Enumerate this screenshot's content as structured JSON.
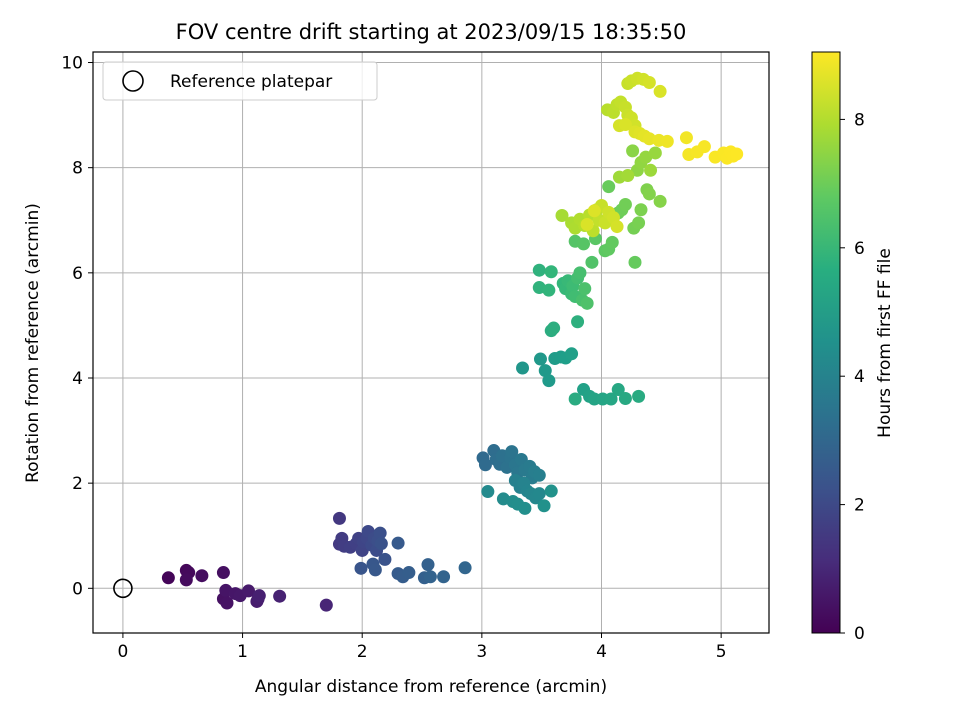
{
  "chart_data": {
    "type": "scatter",
    "title": "FOV centre drift starting at 2023/09/15 18:35:50",
    "xlabel": "Angular distance from reference (arcmin)",
    "ylabel": "Rotation from reference (arcmin)",
    "xlim": [
      -0.25,
      5.4
    ],
    "ylim": [
      -0.85,
      10.2
    ],
    "xticks": [
      0,
      1,
      2,
      3,
      4,
      5
    ],
    "yticks": [
      0,
      2,
      4,
      6,
      8,
      10
    ],
    "grid": true,
    "legend": {
      "position": "top-left",
      "entries": [
        "Reference platepar"
      ]
    },
    "reference_point": {
      "x": 0,
      "y": 0,
      "label": "Reference platepar"
    },
    "colorbar": {
      "label": "Hours from first FF file",
      "colormap": "viridis",
      "range": [
        0,
        9.05
      ],
      "ticks": [
        0,
        2,
        4,
        6,
        8
      ]
    },
    "series": [
      {
        "points": [
          [
            0.38,
            0.2,
            0.1
          ],
          [
            0.53,
            0.34,
            0.15
          ],
          [
            0.55,
            0.3,
            0.2
          ],
          [
            0.53,
            0.16,
            0.25
          ],
          [
            0.66,
            0.24,
            0.3
          ],
          [
            0.84,
            0.3,
            0.35
          ],
          [
            0.84,
            -0.2,
            0.4
          ],
          [
            0.87,
            -0.28,
            0.45
          ],
          [
            0.86,
            -0.04,
            0.5
          ],
          [
            0.94,
            -0.1,
            0.55
          ],
          [
            0.98,
            -0.14,
            0.6
          ],
          [
            1.05,
            -0.05,
            0.65
          ],
          [
            1.12,
            -0.25,
            0.7
          ],
          [
            1.13,
            -0.2,
            0.75
          ],
          [
            1.14,
            -0.14,
            0.8
          ],
          [
            1.31,
            -0.15,
            0.85
          ],
          [
            1.7,
            -0.32,
            0.95
          ],
          [
            1.81,
            1.33,
            1.5
          ],
          [
            1.81,
            0.84,
            1.55
          ],
          [
            1.83,
            0.95,
            1.6
          ],
          [
            1.85,
            0.8,
            1.65
          ],
          [
            1.9,
            0.78,
            1.7
          ],
          [
            1.95,
            0.85,
            1.75
          ],
          [
            1.97,
            0.95,
            1.8
          ],
          [
            2.0,
            0.72,
            1.85
          ],
          [
            2.01,
            0.88,
            1.9
          ],
          [
            2.04,
            0.95,
            1.95
          ],
          [
            2.05,
            1.08,
            2.0
          ],
          [
            2.08,
            0.82,
            2.05
          ],
          [
            2.1,
            0.95,
            2.1
          ],
          [
            2.12,
            0.72,
            2.15
          ],
          [
            2.13,
            0.9,
            2.2
          ],
          [
            2.15,
            1.05,
            2.25
          ],
          [
            2.16,
            0.85,
            2.3
          ],
          [
            2.19,
            0.55,
            2.35
          ],
          [
            1.99,
            0.38,
            2.4
          ],
          [
            2.09,
            0.46,
            2.45
          ],
          [
            2.11,
            0.35,
            2.5
          ],
          [
            2.3,
            0.86,
            2.55
          ],
          [
            2.3,
            0.28,
            2.6
          ],
          [
            2.34,
            0.22,
            2.65
          ],
          [
            2.39,
            0.3,
            2.7
          ],
          [
            2.52,
            0.2,
            2.75
          ],
          [
            2.55,
            0.45,
            2.8
          ],
          [
            2.57,
            0.22,
            2.85
          ],
          [
            2.68,
            0.22,
            2.9
          ],
          [
            2.86,
            0.39,
            2.95
          ],
          [
            3.01,
            2.48,
            3.1
          ],
          [
            3.03,
            2.35,
            3.15
          ],
          [
            3.1,
            2.62,
            3.2
          ],
          [
            3.12,
            2.45,
            3.25
          ],
          [
            3.15,
            2.36,
            3.3
          ],
          [
            3.17,
            2.52,
            3.35
          ],
          [
            3.21,
            2.3,
            3.4
          ],
          [
            3.24,
            2.48,
            3.45
          ],
          [
            3.25,
            2.6,
            3.5
          ],
          [
            3.28,
            2.35,
            3.55
          ],
          [
            3.3,
            2.2,
            3.6
          ],
          [
            3.33,
            2.45,
            3.65
          ],
          [
            3.36,
            2.25,
            3.7
          ],
          [
            3.4,
            2.32,
            3.75
          ],
          [
            3.42,
            2.1,
            3.8
          ],
          [
            3.44,
            2.22,
            3.85
          ],
          [
            3.48,
            2.15,
            3.9
          ],
          [
            3.28,
            2.05,
            3.95
          ],
          [
            3.32,
            1.92,
            4.0
          ],
          [
            3.35,
            2.0,
            4.05
          ],
          [
            3.38,
            1.85,
            4.1
          ],
          [
            3.41,
            1.8,
            4.15
          ],
          [
            3.45,
            1.72,
            4.2
          ],
          [
            3.48,
            1.8,
            4.25
          ],
          [
            3.05,
            1.84,
            4.3
          ],
          [
            3.18,
            1.7,
            4.35
          ],
          [
            3.26,
            1.65,
            4.4
          ],
          [
            3.3,
            1.6,
            4.45
          ],
          [
            3.36,
            1.52,
            4.5
          ],
          [
            3.52,
            1.57,
            4.55
          ],
          [
            3.58,
            1.85,
            4.6
          ],
          [
            3.34,
            4.19,
            4.75
          ],
          [
            3.49,
            4.36,
            4.8
          ],
          [
            3.53,
            4.14,
            4.85
          ],
          [
            3.56,
            3.95,
            4.9
          ],
          [
            3.61,
            4.37,
            4.95
          ],
          [
            3.66,
            4.4,
            5.0
          ],
          [
            3.7,
            4.38,
            5.05
          ],
          [
            3.75,
            4.46,
            5.1
          ],
          [
            3.85,
            3.78,
            5.15
          ],
          [
            3.9,
            3.65,
            5.2
          ],
          [
            3.94,
            3.6,
            5.25
          ],
          [
            4.01,
            3.6,
            5.3
          ],
          [
            4.08,
            3.6,
            5.35
          ],
          [
            4.14,
            3.78,
            5.4
          ],
          [
            4.2,
            3.61,
            5.45
          ],
          [
            4.31,
            3.65,
            5.5
          ],
          [
            3.78,
            3.6,
            5.55
          ],
          [
            3.58,
            4.9,
            5.6
          ],
          [
            3.6,
            4.95,
            5.65
          ],
          [
            3.8,
            5.07,
            5.7
          ],
          [
            3.48,
            6.05,
            5.8
          ],
          [
            3.48,
            5.72,
            5.85
          ],
          [
            3.56,
            5.67,
            5.9
          ],
          [
            3.58,
            6.02,
            5.95
          ],
          [
            3.68,
            5.8,
            6.0
          ],
          [
            3.7,
            5.7,
            6.05
          ],
          [
            3.72,
            5.85,
            6.1
          ],
          [
            3.75,
            5.6,
            6.15
          ],
          [
            3.76,
            5.75,
            6.2
          ],
          [
            3.78,
            5.55,
            6.25
          ],
          [
            3.8,
            5.9,
            6.3
          ],
          [
            3.82,
            6.0,
            6.35
          ],
          [
            3.84,
            5.48,
            6.4
          ],
          [
            3.86,
            5.7,
            6.45
          ],
          [
            3.88,
            5.42,
            6.5
          ],
          [
            3.92,
            6.2,
            6.55
          ],
          [
            3.78,
            6.6,
            6.6
          ],
          [
            3.85,
            6.55,
            6.65
          ],
          [
            3.95,
            6.65,
            6.7
          ],
          [
            4.03,
            6.42,
            6.75
          ],
          [
            4.06,
            6.45,
            6.8
          ],
          [
            4.09,
            6.58,
            6.85
          ],
          [
            4.28,
            6.2,
            6.9
          ],
          [
            4.06,
            7.64,
            6.95
          ],
          [
            4.14,
            7.14,
            7.0
          ],
          [
            4.17,
            7.2,
            7.05
          ],
          [
            4.2,
            7.3,
            7.1
          ],
          [
            4.27,
            6.85,
            7.15
          ],
          [
            4.31,
            6.95,
            7.2
          ],
          [
            4.33,
            7.2,
            7.25
          ],
          [
            4.38,
            7.58,
            7.3
          ],
          [
            4.4,
            7.5,
            7.35
          ],
          [
            4.49,
            7.36,
            7.4
          ],
          [
            4.26,
            8.32,
            7.45
          ],
          [
            4.3,
            7.95,
            7.5
          ],
          [
            4.33,
            8.1,
            7.55
          ],
          [
            4.37,
            8.2,
            7.6
          ],
          [
            4.45,
            8.28,
            7.65
          ],
          [
            4.41,
            7.95,
            7.7
          ],
          [
            4.15,
            7.82,
            7.75
          ],
          [
            4.22,
            7.85,
            7.8
          ],
          [
            3.67,
            7.09,
            7.85
          ],
          [
            3.75,
            6.95,
            7.9
          ],
          [
            3.78,
            6.85,
            7.95
          ],
          [
            3.82,
            7.02,
            8.0
          ],
          [
            3.86,
            6.9,
            8.05
          ],
          [
            3.9,
            7.1,
            8.1
          ],
          [
            3.93,
            6.8,
            8.15
          ],
          [
            3.96,
            7.2,
            8.2
          ],
          [
            3.98,
            7.0,
            8.25
          ],
          [
            4.0,
            7.28,
            8.3
          ],
          [
            4.03,
            6.95,
            8.35
          ],
          [
            4.06,
            7.15,
            8.4
          ],
          [
            4.1,
            7.05,
            8.45
          ],
          [
            4.13,
            6.88,
            8.5
          ],
          [
            3.88,
            6.92,
            8.55
          ],
          [
            3.94,
            7.18,
            8.6
          ],
          [
            4.05,
            9.1,
            8.1
          ],
          [
            4.1,
            9.05,
            8.15
          ],
          [
            4.13,
            9.2,
            8.2
          ],
          [
            4.16,
            9.25,
            8.25
          ],
          [
            4.2,
            9.15,
            8.3
          ],
          [
            4.22,
            9.0,
            8.35
          ],
          [
            4.25,
            8.95,
            8.4
          ],
          [
            4.28,
            8.8,
            8.45
          ],
          [
            4.15,
            8.8,
            8.5
          ],
          [
            4.2,
            8.82,
            8.55
          ],
          [
            4.28,
            8.68,
            8.6
          ],
          [
            4.32,
            8.65,
            8.65
          ],
          [
            4.36,
            8.6,
            8.7
          ],
          [
            4.4,
            8.55,
            8.75
          ],
          [
            4.48,
            8.52,
            8.8
          ],
          [
            4.55,
            8.5,
            8.85
          ],
          [
            4.22,
            9.6,
            8.3
          ],
          [
            4.25,
            9.65,
            8.35
          ],
          [
            4.3,
            9.7,
            8.4
          ],
          [
            4.35,
            9.68,
            8.45
          ],
          [
            4.4,
            9.62,
            8.5
          ],
          [
            4.49,
            9.45,
            8.55
          ],
          [
            4.71,
            8.57,
            8.9
          ],
          [
            4.73,
            8.25,
            8.92
          ],
          [
            4.8,
            8.3,
            8.95
          ],
          [
            4.86,
            8.4,
            8.97
          ],
          [
            4.95,
            8.2,
            9.0
          ],
          [
            5.02,
            8.28,
            9.01
          ],
          [
            5.05,
            8.18,
            9.02
          ],
          [
            5.08,
            8.3,
            9.03
          ],
          [
            5.1,
            8.22,
            9.04
          ],
          [
            5.13,
            8.26,
            9.05
          ]
        ]
      }
    ]
  }
}
